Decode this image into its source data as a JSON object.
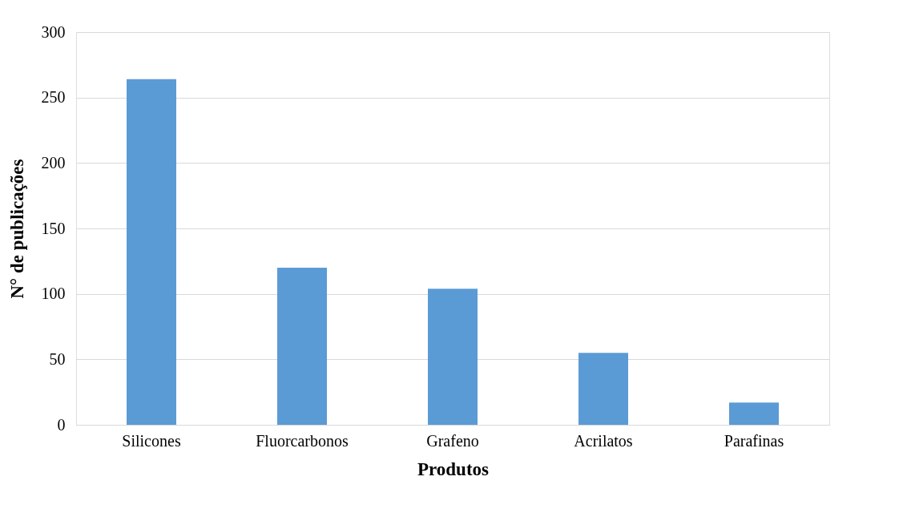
{
  "chart_data": {
    "type": "bar",
    "xlabel": "Produtos",
    "ylabel": "N° de publicações",
    "categories": [
      "Silicones",
      "Fluorcarbonos",
      "Grafeno",
      "Acrilatos",
      "Parafinas"
    ],
    "values": [
      264,
      120,
      104,
      55,
      17
    ],
    "color": "#5b9bd5",
    "ylim": [
      0,
      300
    ],
    "yticks": [
      0,
      50,
      100,
      150,
      200,
      250,
      300
    ],
    "grid": "y"
  }
}
